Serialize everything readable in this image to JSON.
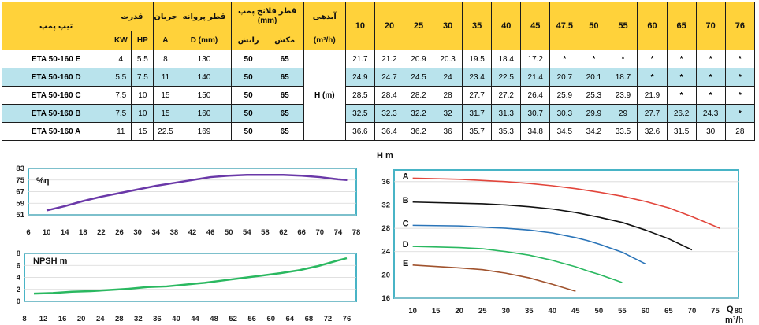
{
  "table": {
    "headers": {
      "model": "تیپ پمپ",
      "power": "قدرت",
      "current": "جریان",
      "impeller": "قطر پروانه",
      "flange": "قطر فلانج پمپ (mm)",
      "flow": "آبدهی",
      "kw": "KW",
      "hp": "HP",
      "amp": "A",
      "dmm": "D (mm)",
      "discharge": "رانش",
      "suction": "مکش",
      "flow_unit": "(m³/h)",
      "head_unit": "H (m)"
    },
    "flow_values": [
      "10",
      "20",
      "25",
      "30",
      "35",
      "40",
      "45",
      "47.5",
      "50",
      "55",
      "60",
      "65",
      "70",
      "76"
    ],
    "rows": [
      {
        "model": "ETA 50-160 E",
        "kw": "4",
        "hp": "5.5",
        "a": "8",
        "d": "130",
        "discharge": "50",
        "suction": "65",
        "heads": [
          "21.7",
          "21.2",
          "20.9",
          "20.3",
          "19.5",
          "18.4",
          "17.2",
          "*",
          "*",
          "*",
          "*",
          "*",
          "*",
          "*"
        ]
      },
      {
        "model": "ETA 50-160 D",
        "kw": "5.5",
        "hp": "7.5",
        "a": "11",
        "d": "140",
        "discharge": "50",
        "suction": "65",
        "heads": [
          "24.9",
          "24.7",
          "24.5",
          "24",
          "23.4",
          "22.5",
          "21.4",
          "20.7",
          "20.1",
          "18.7",
          "*",
          "*",
          "*",
          "*"
        ]
      },
      {
        "model": "ETA 50-160 C",
        "kw": "7.5",
        "hp": "10",
        "a": "15",
        "d": "150",
        "discharge": "50",
        "suction": "65",
        "heads": [
          "28.5",
          "28.4",
          "28.2",
          "28",
          "27.7",
          "27.2",
          "26.4",
          "25.9",
          "25.3",
          "23.9",
          "21.9",
          "*",
          "*",
          "*"
        ]
      },
      {
        "model": "ETA 50-160 B",
        "kw": "7.5",
        "hp": "10",
        "a": "15",
        "d": "160",
        "discharge": "50",
        "suction": "65",
        "heads": [
          "32.5",
          "32.3",
          "32.2",
          "32",
          "31.7",
          "31.3",
          "30.7",
          "30.3",
          "29.9",
          "29",
          "27.7",
          "26.2",
          "24.3",
          "*"
        ]
      },
      {
        "model": "ETA 50-160 A",
        "kw": "11",
        "hp": "15",
        "a": "22.5",
        "d": "169",
        "discharge": "50",
        "suction": "65",
        "heads": [
          "36.6",
          "36.4",
          "36.2",
          "36",
          "35.7",
          "35.3",
          "34.8",
          "34.5",
          "34.2",
          "33.5",
          "32.6",
          "31.5",
          "30",
          "28"
        ]
      }
    ]
  },
  "chart_data": [
    {
      "type": "line",
      "ylabel": "%η",
      "xlim": [
        6,
        78
      ],
      "ylim": [
        51,
        83
      ],
      "xticks": [
        6,
        10,
        14,
        18,
        22,
        26,
        30,
        34,
        38,
        42,
        46,
        50,
        54,
        58,
        62,
        66,
        70,
        74,
        78
      ],
      "yticks": [
        51,
        59,
        67,
        75,
        83
      ],
      "color": "#6a38a8",
      "series": [
        {
          "x": [
            10,
            14,
            18,
            22,
            26,
            30,
            34,
            38,
            42,
            46,
            50,
            54,
            58,
            62,
            66,
            70,
            74,
            76
          ],
          "y": [
            54,
            57,
            60.5,
            63.5,
            66,
            68.5,
            71,
            73,
            75,
            77,
            78,
            78.5,
            78.5,
            78.5,
            78,
            77,
            75.5,
            75
          ]
        }
      ]
    },
    {
      "type": "line",
      "ylabel": "NPSH m",
      "xlim": [
        8,
        78
      ],
      "ylim": [
        0,
        8
      ],
      "xticks": [
        8,
        12,
        16,
        20,
        24,
        28,
        32,
        36,
        40,
        44,
        48,
        52,
        56,
        60,
        64,
        68,
        72,
        76
      ],
      "yticks": [
        0,
        2,
        4,
        6,
        8
      ],
      "color": "#2ab860",
      "series": [
        {
          "x": [
            10,
            14,
            18,
            22,
            26,
            30,
            34,
            38,
            42,
            46,
            50,
            54,
            58,
            62,
            66,
            70,
            74,
            76
          ],
          "y": [
            1.3,
            1.4,
            1.6,
            1.7,
            1.9,
            2.1,
            2.4,
            2.5,
            2.8,
            3.1,
            3.5,
            3.9,
            4.3,
            4.7,
            5.2,
            5.9,
            6.8,
            7.2
          ]
        }
      ]
    },
    {
      "type": "line",
      "ylabel": "H m",
      "xlabel": "Q m³/h",
      "xlim": [
        6,
        80
      ],
      "ylim": [
        16,
        38
      ],
      "xticks": [
        10,
        15,
        20,
        25,
        30,
        35,
        40,
        45,
        50,
        55,
        60,
        65,
        70,
        75,
        80
      ],
      "yticks": [
        16,
        20,
        24,
        28,
        32,
        36
      ],
      "series": [
        {
          "name": "A",
          "color": "#e2453b",
          "x": [
            10,
            20,
            25,
            30,
            35,
            40,
            45,
            47.5,
            50,
            55,
            60,
            65,
            70,
            76
          ],
          "y": [
            36.6,
            36.4,
            36.2,
            36,
            35.7,
            35.3,
            34.8,
            34.5,
            34.2,
            33.5,
            32.6,
            31.5,
            30,
            28
          ]
        },
        {
          "name": "B",
          "color": "#111111",
          "x": [
            10,
            20,
            25,
            30,
            35,
            40,
            45,
            47.5,
            50,
            55,
            60,
            65,
            70
          ],
          "y": [
            32.5,
            32.3,
            32.2,
            32,
            31.7,
            31.3,
            30.7,
            30.3,
            29.9,
            29,
            27.7,
            26.2,
            24.3
          ]
        },
        {
          "name": "C",
          "color": "#2a74b8",
          "x": [
            10,
            20,
            25,
            30,
            35,
            40,
            45,
            47.5,
            50,
            55,
            60
          ],
          "y": [
            28.5,
            28.4,
            28.2,
            28,
            27.7,
            27.2,
            26.4,
            25.9,
            25.3,
            23.9,
            21.9
          ]
        },
        {
          "name": "D",
          "color": "#2ab860",
          "x": [
            10,
            20,
            25,
            30,
            35,
            40,
            45,
            47.5,
            50,
            55
          ],
          "y": [
            24.9,
            24.7,
            24.5,
            24,
            23.4,
            22.5,
            21.4,
            20.7,
            20.1,
            18.7
          ]
        },
        {
          "name": "E",
          "color": "#a0522d",
          "x": [
            10,
            20,
            25,
            30,
            35,
            40,
            45
          ],
          "y": [
            21.7,
            21.2,
            20.9,
            20.3,
            19.5,
            18.4,
            17.2
          ]
        }
      ]
    }
  ]
}
